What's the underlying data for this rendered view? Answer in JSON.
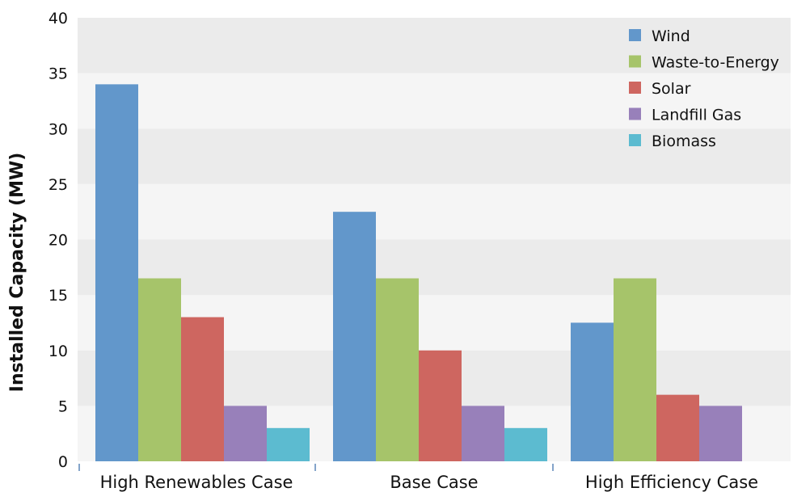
{
  "chart_data": {
    "type": "bar",
    "title": "",
    "xlabel": "",
    "ylabel": "Installed Capacity (MW)",
    "ylim": [
      0,
      40
    ],
    "yticks": [
      0,
      5,
      10,
      15,
      20,
      25,
      30,
      35,
      40
    ],
    "grid": "alternating horizontal bands",
    "legend_position": "top-right",
    "categories": [
      "High Renewables Case",
      "Base Case",
      "High Efficiency Case"
    ],
    "series": [
      {
        "name": "Wind",
        "color": "#6297cb",
        "values": [
          34,
          22.5,
          12.5
        ]
      },
      {
        "name": "Waste-to-Energy",
        "color": "#a6c46a",
        "values": [
          16.5,
          16.5,
          16.5
        ]
      },
      {
        "name": "Solar",
        "color": "#ce6660",
        "values": [
          13,
          10,
          6
        ]
      },
      {
        "name": "Landfill Gas",
        "color": "#9880ba",
        "values": [
          5,
          5,
          5
        ]
      },
      {
        "name": "Biomass",
        "color": "#5cbbd0",
        "values": [
          3,
          3,
          0
        ]
      }
    ]
  }
}
